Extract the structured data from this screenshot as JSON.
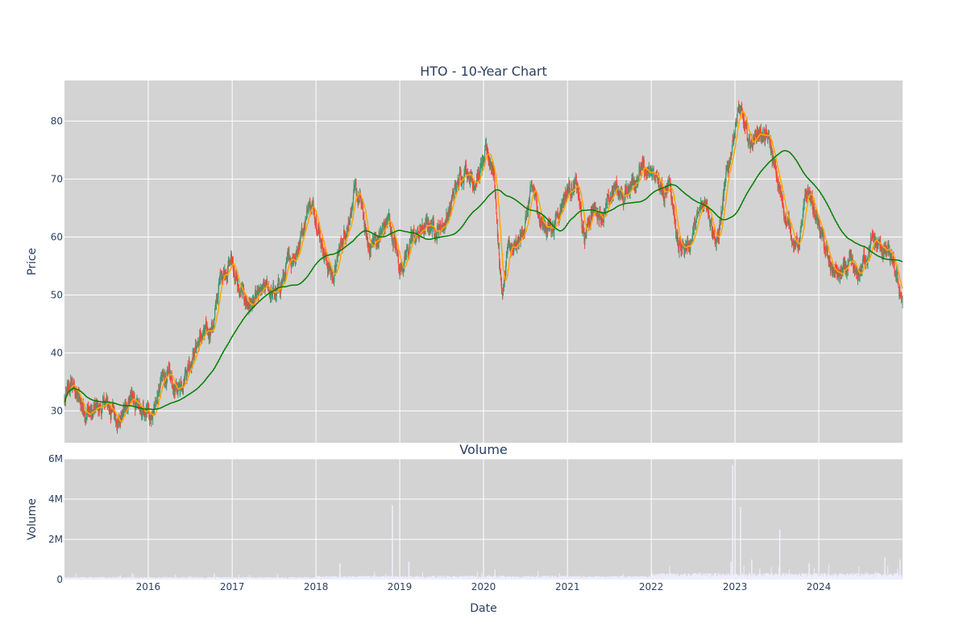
{
  "chart_data": [
    {
      "type": "candlestick",
      "title": "HTO - 10-Year Chart",
      "xlabel": "",
      "ylabel": "Price",
      "xlim": [
        "2015-01-01",
        "2024-12-31"
      ],
      "ylim": [
        24.5,
        87
      ],
      "yticks": [
        30,
        40,
        50,
        60,
        70,
        80
      ],
      "xticks": [
        "2016",
        "2017",
        "2018",
        "2019",
        "2020",
        "2021",
        "2022",
        "2023",
        "2024"
      ],
      "grid": true,
      "plot_bg": "#d3d3d3",
      "colors": {
        "up": "#3d9970",
        "down": "#ff4136",
        "ma_short": "#ffa500",
        "ma_long": "#008000"
      },
      "price_anchors": [
        [
          "2015-01-01",
          31.5
        ],
        [
          "2015-02-01",
          34.5
        ],
        [
          "2015-03-15",
          31
        ],
        [
          "2015-05-01",
          29.5
        ],
        [
          "2015-07-01",
          31
        ],
        [
          "2015-09-01",
          28.5
        ],
        [
          "2015-10-15",
          32.5
        ],
        [
          "2015-12-01",
          29
        ],
        [
          "2016-01-15",
          29.5
        ],
        [
          "2016-02-15",
          33
        ],
        [
          "2016-03-15",
          36.5
        ],
        [
          "2016-05-01",
          33
        ],
        [
          "2016-07-01",
          39
        ],
        [
          "2016-08-15",
          42.5
        ],
        [
          "2016-09-15",
          43
        ],
        [
          "2016-10-15",
          46
        ],
        [
          "2016-11-15",
          54
        ],
        [
          "2016-12-31",
          56
        ],
        [
          "2017-02-01",
          50
        ],
        [
          "2017-04-01",
          48
        ],
        [
          "2017-06-01",
          51
        ],
        [
          "2017-07-15",
          50
        ],
        [
          "2017-09-01",
          55
        ],
        [
          "2017-10-15",
          58.5
        ],
        [
          "2017-12-01",
          66
        ],
        [
          "2018-01-01",
          64
        ],
        [
          "2018-02-15",
          56
        ],
        [
          "2018-03-15",
          53
        ],
        [
          "2018-05-01",
          60
        ],
        [
          "2018-06-15",
          67
        ],
        [
          "2018-07-15",
          66
        ],
        [
          "2018-08-15",
          58
        ],
        [
          "2018-10-01",
          60
        ],
        [
          "2018-11-15",
          63
        ],
        [
          "2019-01-01",
          54.5
        ],
        [
          "2019-02-15",
          59
        ],
        [
          "2019-04-01",
          61
        ],
        [
          "2019-05-15",
          62
        ],
        [
          "2019-06-15",
          61.5
        ],
        [
          "2019-07-15",
          62.5
        ],
        [
          "2019-09-01",
          68
        ],
        [
          "2019-10-15",
          72.5
        ],
        [
          "2019-11-15",
          70
        ],
        [
          "2019-12-15",
          71
        ],
        [
          "2020-01-15",
          74
        ],
        [
          "2020-02-15",
          72
        ],
        [
          "2020-03-10",
          56
        ],
        [
          "2020-03-25",
          50
        ],
        [
          "2020-04-15",
          58
        ],
        [
          "2020-05-15",
          57
        ],
        [
          "2020-06-15",
          60
        ],
        [
          "2020-08-01",
          68
        ],
        [
          "2020-09-15",
          62
        ],
        [
          "2020-11-01",
          62
        ],
        [
          "2020-12-15",
          67
        ],
        [
          "2021-01-15",
          69
        ],
        [
          "2021-02-15",
          68
        ],
        [
          "2021-03-15",
          59
        ],
        [
          "2021-04-15",
          65
        ],
        [
          "2021-06-15",
          64
        ],
        [
          "2021-08-01",
          69
        ],
        [
          "2021-09-01",
          66.5
        ],
        [
          "2021-10-01",
          69
        ],
        [
          "2021-11-15",
          72
        ],
        [
          "2021-12-15",
          70
        ],
        [
          "2022-01-15",
          71
        ],
        [
          "2022-03-01",
          66
        ],
        [
          "2022-03-20",
          70.5
        ],
        [
          "2022-05-01",
          58
        ],
        [
          "2022-06-15",
          59
        ],
        [
          "2022-08-01",
          64
        ],
        [
          "2022-09-01",
          66.5
        ],
        [
          "2022-10-15",
          59
        ],
        [
          "2022-12-15",
          75
        ],
        [
          "2023-01-01",
          80
        ],
        [
          "2023-01-20",
          82
        ],
        [
          "2023-03-01",
          76
        ],
        [
          "2023-04-15",
          78.5
        ],
        [
          "2023-06-01",
          76
        ],
        [
          "2023-07-01",
          70
        ],
        [
          "2023-08-15",
          63
        ],
        [
          "2023-10-01",
          58
        ],
        [
          "2023-11-15",
          68
        ],
        [
          "2024-01-01",
          62
        ],
        [
          "2024-02-15",
          55
        ],
        [
          "2024-04-01",
          53
        ],
        [
          "2024-05-15",
          55
        ],
        [
          "2024-06-15",
          52.5
        ],
        [
          "2024-08-15",
          59
        ],
        [
          "2024-10-01",
          58
        ],
        [
          "2024-11-01",
          57
        ],
        [
          "2024-12-01",
          53
        ],
        [
          "2024-12-31",
          49.5
        ]
      ]
    },
    {
      "type": "bar",
      "title": "Volume",
      "xlabel": "Date",
      "ylabel": "Volume",
      "xlim": [
        "2015-01-01",
        "2024-12-31"
      ],
      "ylim": [
        0,
        6000000
      ],
      "yticks": [
        0,
        2000000,
        4000000,
        6000000
      ],
      "ytick_labels": [
        "0",
        "2M",
        "4M",
        "6M"
      ],
      "xtick_labels": [
        "2016",
        "2017",
        "2018",
        "2019",
        "2020",
        "2021",
        "2022",
        "2023",
        "2024"
      ],
      "bar_color": "#eeeeff",
      "spikes": [
        [
          "2016-10-15",
          300000
        ],
        [
          "2018-04-15",
          800000
        ],
        [
          "2018-11-30",
          3700000
        ],
        [
          "2019-02-10",
          900000
        ],
        [
          "2020-02-20",
          500000
        ],
        [
          "2022-12-15",
          900000
        ],
        [
          "2022-12-22",
          5700000
        ],
        [
          "2023-01-25",
          3600000
        ],
        [
          "2023-03-15",
          1000000
        ],
        [
          "2023-07-15",
          2500000
        ],
        [
          "2023-11-20",
          800000
        ],
        [
          "2024-10-15",
          1100000
        ],
        [
          "2024-12-20",
          1000000
        ]
      ]
    }
  ]
}
